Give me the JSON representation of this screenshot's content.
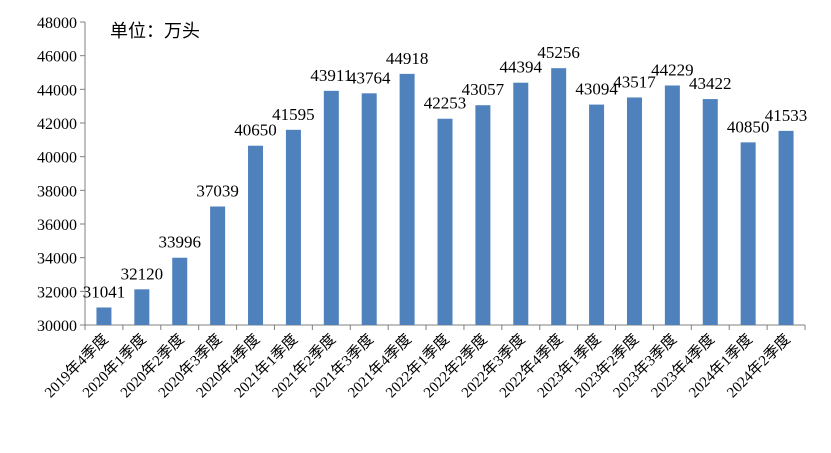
{
  "chart_data": {
    "type": "bar",
    "unit_note": "单位：万头",
    "categories": [
      "2019年4季度",
      "2020年1季度",
      "2020年2季度",
      "2020年3季度",
      "2020年4季度",
      "2021年1季度",
      "2021年2季度",
      "2021年3季度",
      "2021年4季度",
      "2022年1季度",
      "2022年2季度",
      "2022年3季度",
      "2022年4季度",
      "2023年1季度",
      "2023年2季度",
      "2023年3季度",
      "2023年4季度",
      "2024年1季度",
      "2024年2季度"
    ],
    "values": [
      31041,
      32120,
      33996,
      37039,
      40650,
      41595,
      43911,
      43764,
      44918,
      42253,
      43057,
      44394,
      45256,
      43094,
      43517,
      44229,
      43422,
      40850,
      41533
    ],
    "ylim": [
      30000,
      48000
    ],
    "yticks": [
      30000,
      32000,
      34000,
      36000,
      38000,
      40000,
      42000,
      44000,
      46000,
      48000
    ],
    "bar_color": "#4F81BD",
    "grid": false
  }
}
